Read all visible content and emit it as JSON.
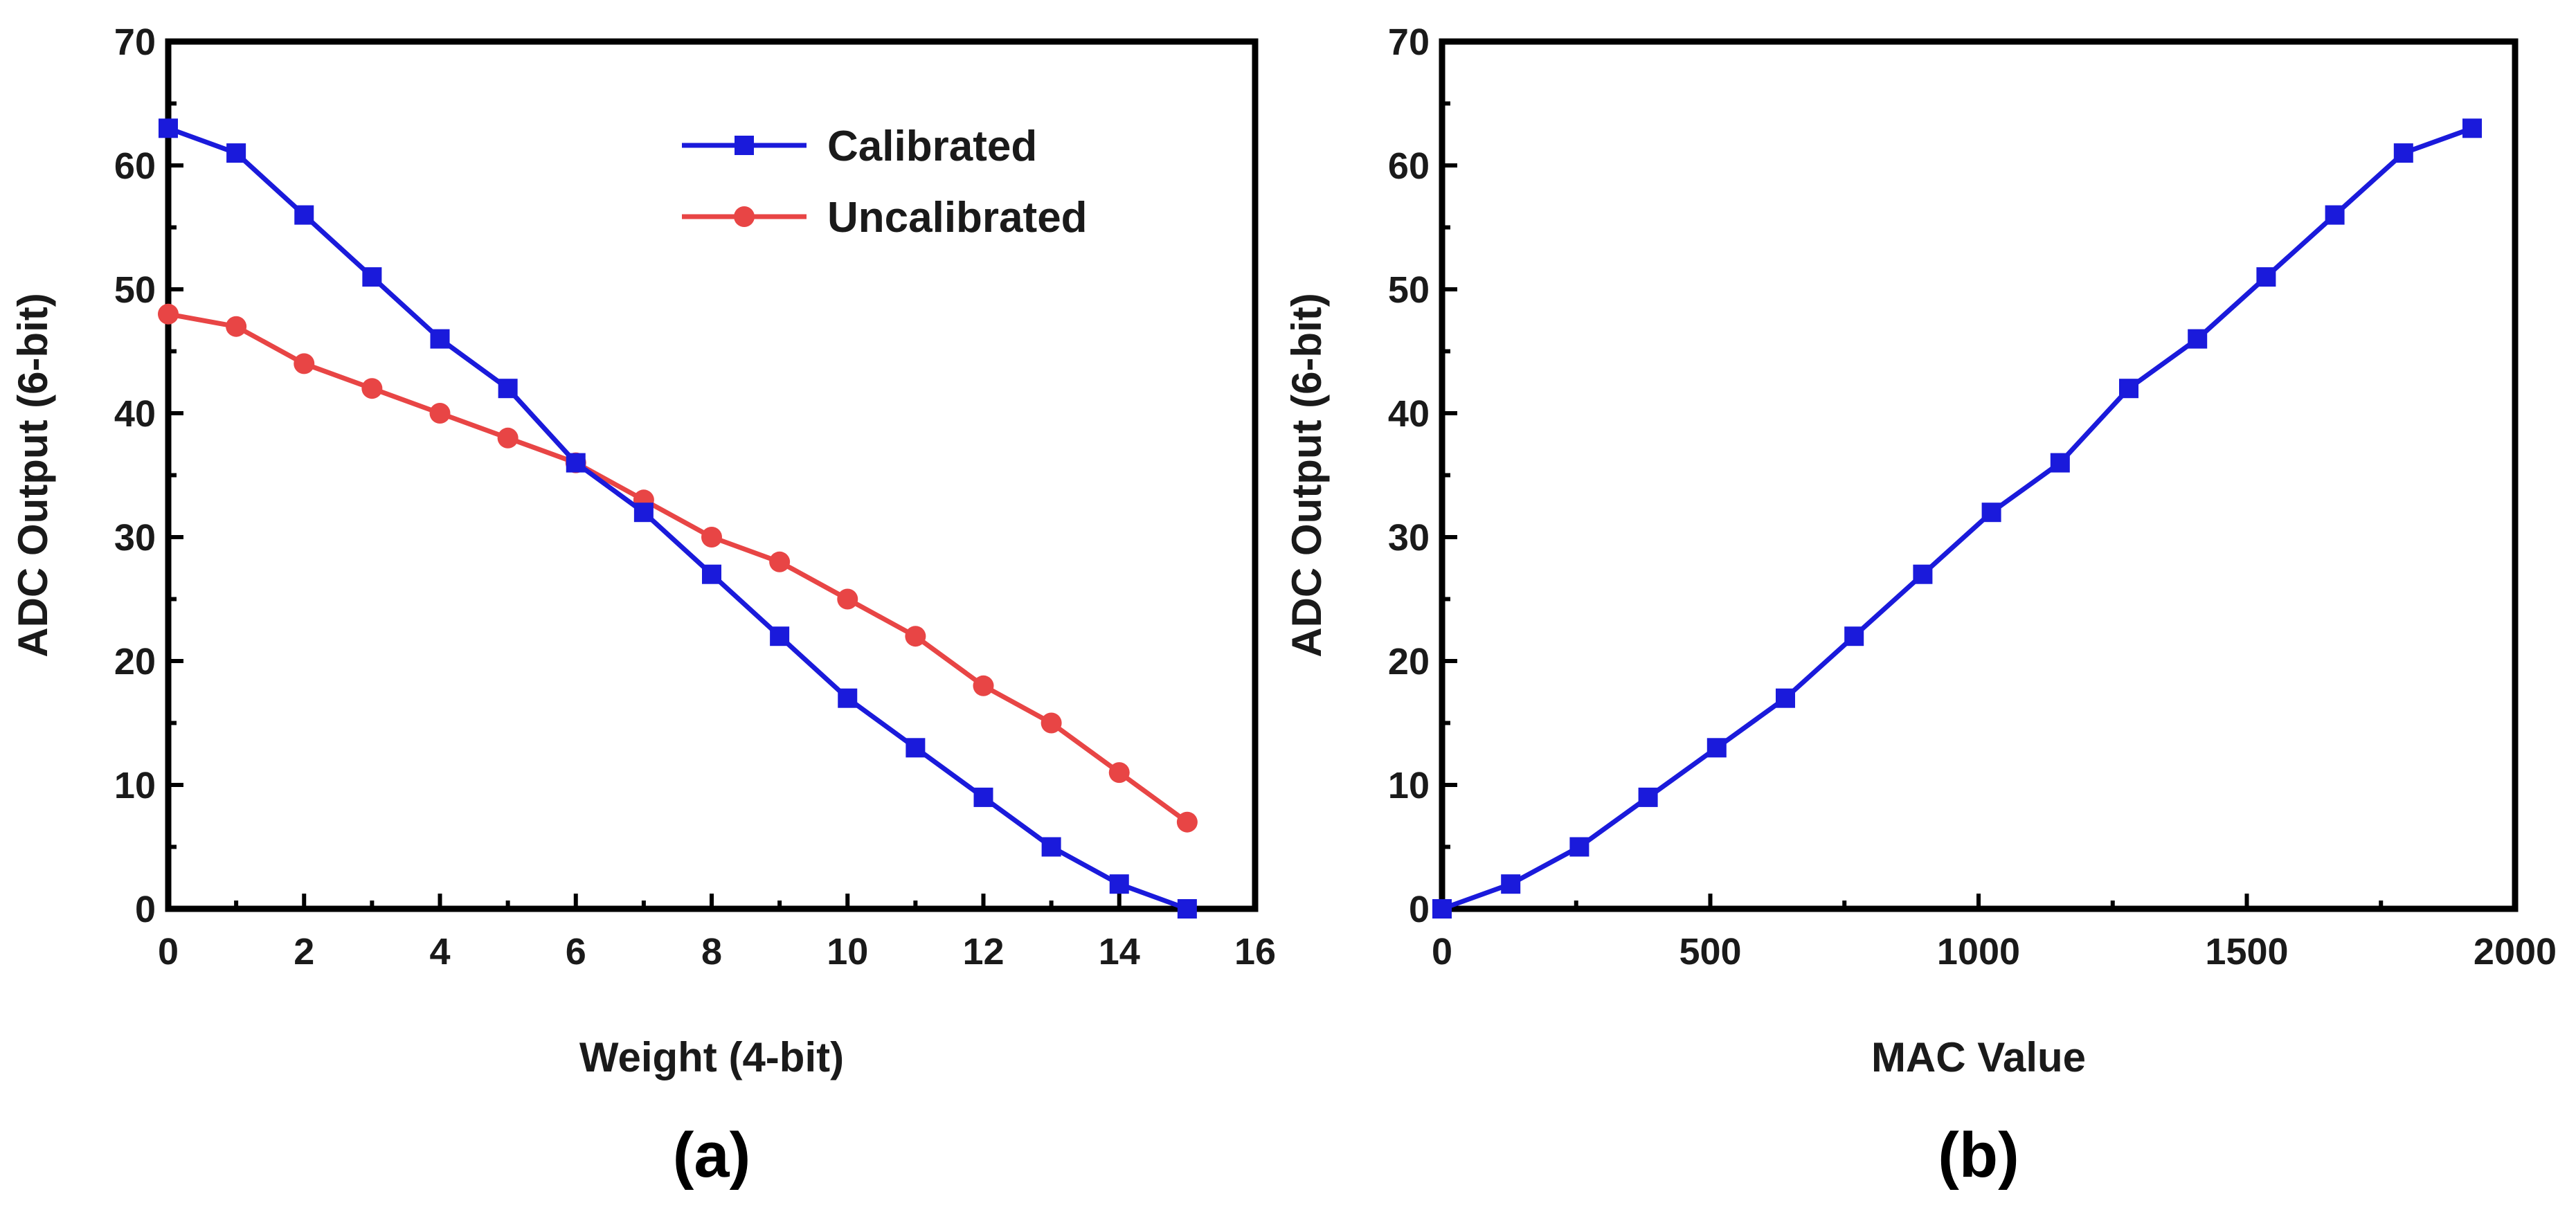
{
  "chart_data": [
    {
      "type": "line",
      "panel_label": "(a)",
      "xlabel": "Weight (4-bit)",
      "ylabel": "ADC Output (6-bit)",
      "xlim": [
        0,
        16
      ],
      "ylim": [
        0,
        70
      ],
      "xticks": [
        0,
        2,
        4,
        6,
        8,
        10,
        12,
        14,
        16
      ],
      "yticks": [
        0,
        10,
        20,
        30,
        40,
        50,
        60,
        70
      ],
      "grid": false,
      "legend": "top-right",
      "series": [
        {
          "name": "Calibrated",
          "color": "#1a1adb",
          "marker": "square",
          "x": [
            0,
            1,
            2,
            3,
            4,
            5,
            6,
            7,
            8,
            9,
            10,
            11,
            12,
            13,
            14,
            15
          ],
          "y": [
            63,
            61,
            56,
            51,
            46,
            42,
            36,
            32,
            27,
            22,
            17,
            13,
            9,
            5,
            2,
            0
          ]
        },
        {
          "name": "Uncalibrated",
          "color": "#e84545",
          "marker": "circle",
          "x": [
            0,
            1,
            2,
            3,
            4,
            5,
            6,
            7,
            8,
            9,
            10,
            11,
            12,
            13,
            14,
            15
          ],
          "y": [
            48,
            47,
            44,
            42,
            40,
            38,
            36,
            33,
            30,
            28,
            25,
            22,
            18,
            15,
            11,
            7
          ]
        }
      ]
    },
    {
      "type": "line",
      "panel_label": "(b)",
      "xlabel": "MAC Value",
      "ylabel": "ADC Output (6-bit)",
      "xlim": [
        0,
        2000
      ],
      "ylim": [
        0,
        70
      ],
      "xticks": [
        0,
        500,
        1000,
        1500,
        2000
      ],
      "yticks": [
        0,
        10,
        20,
        30,
        40,
        50,
        60,
        70
      ],
      "grid": false,
      "series": [
        {
          "color": "#1a1adb",
          "marker": "square",
          "x": [
            0,
            128,
            256,
            384,
            512,
            640,
            768,
            896,
            1024,
            1152,
            1280,
            1408,
            1536,
            1664,
            1792,
            1920
          ],
          "y": [
            0,
            2,
            5,
            9,
            13,
            17,
            22,
            27,
            32,
            36,
            42,
            46,
            51,
            56,
            61,
            63
          ]
        }
      ]
    }
  ]
}
